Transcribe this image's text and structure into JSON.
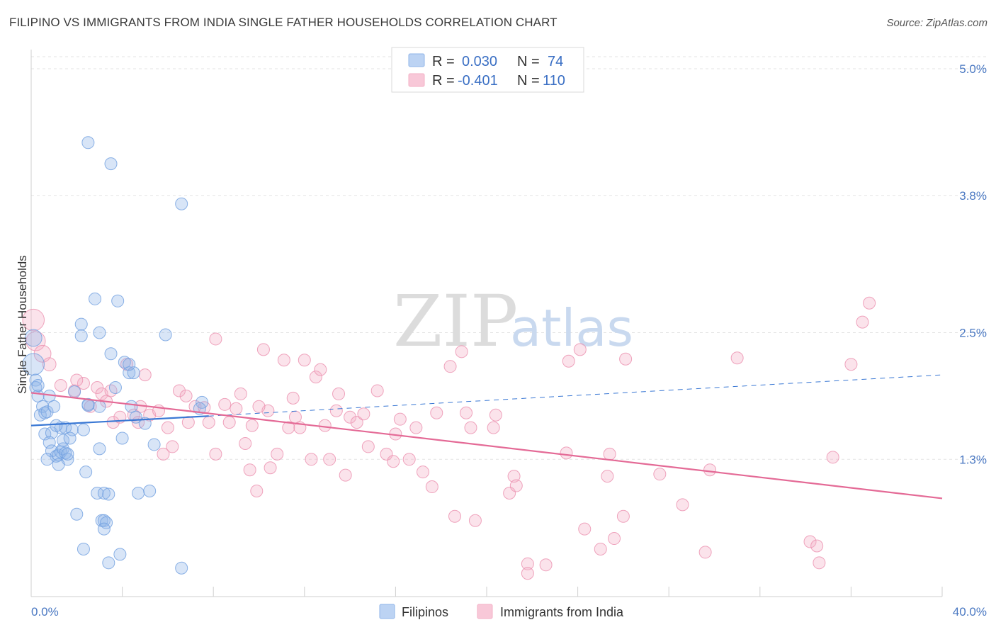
{
  "title": "FILIPINO VS IMMIGRANTS FROM INDIA SINGLE FATHER HOUSEHOLDS CORRELATION CHART",
  "source": "Source: ZipAtlas.com",
  "watermark": {
    "zip": "ZIP",
    "atlas": "atlas"
  },
  "colors": {
    "blue": "#8fb4e8",
    "blue_stroke": "#6f9fe0",
    "blue_line": "#3a78d4",
    "pink": "#f3b0c6",
    "pink_stroke": "#eb8fae",
    "pink_line": "#e46a96",
    "grid": "#e3e3e3",
    "axis_text": "#4a78c2"
  },
  "legend": {
    "rows": [
      {
        "r_label": "R =",
        "r_value": "0.030",
        "n_label": "N =",
        "n_value": "74"
      },
      {
        "r_label": "R =",
        "r_value": "-0.401",
        "n_label": "N =",
        "n_value": "110"
      }
    ]
  },
  "chart_data": {
    "type": "scatter",
    "ylabel": "Single Father Households",
    "xlim": [
      0,
      40
    ],
    "ylim": [
      0,
      5.0
    ],
    "x_tick_labels": [
      "0.0%",
      "40.0%"
    ],
    "y_ticks": [
      {
        "value": 1.3,
        "label": "1.3%"
      },
      {
        "value": 2.5,
        "label": "2.5%"
      },
      {
        "value": 3.8,
        "label": "3.8%"
      },
      {
        "value": 5.0,
        "label": "5.0%"
      }
    ],
    "series": [
      {
        "name": "Filipinos",
        "color": "blue",
        "trend": {
          "x0": 0,
          "y0": 1.62,
          "x1_solid": 7.8,
          "y1_solid": 1.71,
          "x1": 40,
          "y1": 2.1
        },
        "points": [
          [
            0.1,
            2.2,
            1.8
          ],
          [
            0.1,
            2.45,
            1.4
          ],
          [
            0.2,
            2.05,
            1
          ],
          [
            0.2,
            1.98,
            1
          ],
          [
            0.3,
            1.9,
            1
          ],
          [
            0.3,
            2.0,
            1
          ],
          [
            0.4,
            1.72,
            1
          ],
          [
            0.5,
            1.8,
            1
          ],
          [
            0.6,
            1.74,
            1
          ],
          [
            0.7,
            1.75,
            1
          ],
          [
            0.8,
            1.9,
            1
          ],
          [
            1.0,
            1.8,
            1
          ],
          [
            0.6,
            1.54,
            1
          ],
          [
            0.9,
            1.55,
            1
          ],
          [
            0.8,
            1.46,
            1
          ],
          [
            0.9,
            1.38,
            1
          ],
          [
            1.1,
            1.33,
            1
          ],
          [
            1.2,
            1.34,
            1
          ],
          [
            1.3,
            1.37,
            1
          ],
          [
            1.4,
            1.4,
            1
          ],
          [
            1.5,
            1.36,
            1
          ],
          [
            1.4,
            1.48,
            1
          ],
          [
            1.6,
            1.3,
            1
          ],
          [
            1.3,
            1.6,
            1
          ],
          [
            1.5,
            1.6,
            1
          ],
          [
            1.1,
            1.62,
            1
          ],
          [
            1.8,
            1.58,
            1
          ],
          [
            2.3,
            1.58,
            1
          ],
          [
            2.4,
            1.18,
            1
          ],
          [
            1.9,
            1.94,
            1
          ],
          [
            2.2,
            2.58,
            1
          ],
          [
            2.2,
            2.47,
            1
          ],
          [
            2.8,
            2.82,
            1
          ],
          [
            3.0,
            1.8,
            1
          ],
          [
            2.5,
            1.81,
            1
          ],
          [
            3.0,
            2.5,
            1
          ],
          [
            3.0,
            1.4,
            1
          ],
          [
            3.5,
            2.3,
            1
          ],
          [
            3.7,
            1.98,
            1
          ],
          [
            3.8,
            2.8,
            1
          ],
          [
            4.1,
            2.22,
            1
          ],
          [
            4.3,
            2.12,
            1
          ],
          [
            4.4,
            1.8,
            1
          ],
          [
            4.5,
            2.12,
            1
          ],
          [
            4.0,
            1.5,
            1
          ],
          [
            4.6,
            1.7,
            1
          ],
          [
            5.0,
            1.64,
            1
          ],
          [
            5.4,
            1.44,
            1
          ],
          [
            5.9,
            2.48,
            1
          ],
          [
            7.5,
            1.84,
            1
          ],
          [
            7.4,
            1.78,
            1
          ],
          [
            2.9,
            0.98,
            1
          ],
          [
            3.2,
            0.98,
            1
          ],
          [
            3.4,
            0.97,
            1
          ],
          [
            3.1,
            0.72,
            1
          ],
          [
            3.2,
            0.72,
            1
          ],
          [
            3.3,
            0.7,
            1
          ],
          [
            3.2,
            0.64,
            1
          ],
          [
            2.0,
            0.78,
            1
          ],
          [
            4.7,
            0.98,
            1
          ],
          [
            5.2,
            1.0,
            1
          ],
          [
            2.3,
            0.45,
            1
          ],
          [
            3.9,
            0.4,
            1
          ],
          [
            3.4,
            0.32,
            1
          ],
          [
            6.6,
            0.27,
            1
          ],
          [
            2.5,
            4.3,
            1
          ],
          [
            3.5,
            4.1,
            1
          ],
          [
            6.6,
            3.72,
            1
          ],
          [
            1.2,
            1.25,
            1
          ],
          [
            0.7,
            1.3,
            1
          ],
          [
            1.6,
            1.35,
            1
          ],
          [
            2.5,
            1.82,
            1
          ],
          [
            1.7,
            1.5,
            1
          ],
          [
            4.3,
            2.2,
            1
          ]
        ]
      },
      {
        "name": "Immigrants from India",
        "color": "pink",
        "trend": {
          "x0": 0,
          "y0": 1.93,
          "x1": 40,
          "y1": 0.93
        },
        "points": [
          [
            0.1,
            2.62,
            1.8
          ],
          [
            0.2,
            2.42,
            1.6
          ],
          [
            0.5,
            2.3,
            1.4
          ],
          [
            0.8,
            2.2,
            1.1
          ],
          [
            1.3,
            2.0,
            1
          ],
          [
            1.9,
            1.95,
            1
          ],
          [
            2.3,
            2.02,
            1
          ],
          [
            2.6,
            1.8,
            1
          ],
          [
            2.9,
            1.98,
            1
          ],
          [
            3.1,
            1.92,
            1
          ],
          [
            3.3,
            1.85,
            1
          ],
          [
            3.5,
            1.95,
            1
          ],
          [
            3.6,
            1.65,
            1
          ],
          [
            3.9,
            1.7,
            1
          ],
          [
            4.2,
            2.2,
            1
          ],
          [
            4.5,
            1.72,
            1
          ],
          [
            4.7,
            1.65,
            1
          ],
          [
            5.0,
            2.1,
            1
          ],
          [
            5.2,
            1.72,
            1
          ],
          [
            5.6,
            1.76,
            1
          ],
          [
            6.0,
            1.6,
            1
          ],
          [
            6.2,
            1.42,
            1
          ],
          [
            6.5,
            1.95,
            1
          ],
          [
            6.8,
            1.9,
            1
          ],
          [
            6.9,
            1.65,
            1
          ],
          [
            7.2,
            1.8,
            1
          ],
          [
            7.6,
            1.79,
            1
          ],
          [
            7.8,
            1.65,
            1
          ],
          [
            8.1,
            1.35,
            1
          ],
          [
            8.5,
            1.82,
            1
          ],
          [
            8.7,
            1.65,
            1
          ],
          [
            9.0,
            1.78,
            1
          ],
          [
            9.2,
            1.92,
            1
          ],
          [
            9.4,
            1.45,
            1
          ],
          [
            9.7,
            1.62,
            1
          ],
          [
            9.9,
            1.0,
            1
          ],
          [
            10.2,
            2.34,
            1
          ],
          [
            10.4,
            1.76,
            1
          ],
          [
            10.5,
            1.22,
            1
          ],
          [
            10.8,
            1.35,
            1
          ],
          [
            11.1,
            2.24,
            1
          ],
          [
            11.3,
            1.6,
            1
          ],
          [
            11.6,
            1.7,
            1
          ],
          [
            11.8,
            1.6,
            1
          ],
          [
            12.0,
            2.24,
            1
          ],
          [
            12.3,
            1.3,
            1
          ],
          [
            12.5,
            2.08,
            1
          ],
          [
            12.7,
            2.15,
            1
          ],
          [
            12.9,
            1.62,
            1
          ],
          [
            13.1,
            1.3,
            1
          ],
          [
            13.5,
            1.92,
            1
          ],
          [
            13.8,
            1.15,
            1
          ],
          [
            14.0,
            1.7,
            1
          ],
          [
            14.3,
            1.65,
            1
          ],
          [
            14.6,
            1.73,
            1
          ],
          [
            14.8,
            1.42,
            1
          ],
          [
            15.2,
            1.95,
            1
          ],
          [
            15.6,
            1.35,
            1
          ],
          [
            15.9,
            1.28,
            1
          ],
          [
            16.2,
            1.68,
            1
          ],
          [
            16.6,
            1.3,
            1
          ],
          [
            16.9,
            1.6,
            1
          ],
          [
            17.2,
            1.18,
            1
          ],
          [
            17.6,
            1.04,
            1
          ],
          [
            17.8,
            1.74,
            1
          ],
          [
            18.4,
            2.18,
            1
          ],
          [
            18.6,
            0.76,
            1
          ],
          [
            18.9,
            2.32,
            1
          ],
          [
            19.1,
            1.74,
            1
          ],
          [
            19.3,
            1.6,
            1
          ],
          [
            19.5,
            0.72,
            1
          ],
          [
            20.3,
            1.6,
            1
          ],
          [
            20.4,
            1.72,
            1
          ],
          [
            21.0,
            0.98,
            1
          ],
          [
            21.2,
            1.14,
            1
          ],
          [
            21.3,
            1.05,
            1
          ],
          [
            21.8,
            0.31,
            1
          ],
          [
            22.6,
            0.3,
            1
          ],
          [
            23.6,
            2.23,
            1
          ],
          [
            23.5,
            1.36,
            1
          ],
          [
            24.1,
            2.34,
            1
          ],
          [
            24.3,
            0.64,
            1
          ],
          [
            25.0,
            0.45,
            1
          ],
          [
            25.3,
            1.14,
            1
          ],
          [
            25.4,
            1.35,
            1
          ],
          [
            25.6,
            0.55,
            1
          ],
          [
            26.0,
            0.76,
            1
          ],
          [
            26.1,
            2.25,
            1
          ],
          [
            27.6,
            1.16,
            1
          ],
          [
            28.6,
            0.87,
            1
          ],
          [
            29.6,
            0.42,
            1
          ],
          [
            29.8,
            1.2,
            1
          ],
          [
            31.0,
            2.26,
            1
          ],
          [
            34.2,
            0.52,
            1
          ],
          [
            34.5,
            0.48,
            1
          ],
          [
            34.6,
            0.32,
            1
          ],
          [
            35.2,
            1.32,
            1
          ],
          [
            36.0,
            2.2,
            1
          ],
          [
            36.5,
            2.6,
            1
          ],
          [
            36.8,
            2.78,
            1
          ],
          [
            21.8,
            0.22,
            1
          ],
          [
            8.1,
            2.44,
            1
          ],
          [
            10.0,
            1.8,
            1
          ],
          [
            5.8,
            1.35,
            1
          ],
          [
            2.0,
            2.05,
            1
          ],
          [
            4.8,
            1.8,
            1
          ],
          [
            13.4,
            1.76,
            1
          ],
          [
            11.5,
            1.88,
            1
          ],
          [
            16.0,
            1.54,
            1
          ],
          [
            9.6,
            1.2,
            1
          ]
        ]
      }
    ]
  },
  "bottom_legend": {
    "items": [
      {
        "label": "Filipinos",
        "color": "blue"
      },
      {
        "label": "Immigrants from India",
        "color": "pink"
      }
    ]
  }
}
